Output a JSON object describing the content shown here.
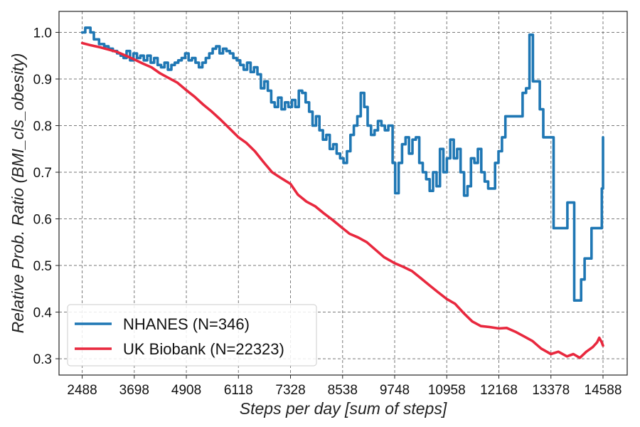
{
  "chart_data": {
    "type": "line",
    "xlabel": "Steps per day [sum of steps]",
    "ylabel": "Relative Prob. Ratio (BMI_cls_obesity)",
    "xlim": [
      1950,
      15150
    ],
    "ylim": [
      0.265,
      1.045
    ],
    "xticks": [
      2488,
      3698,
      4908,
      6118,
      7328,
      8538,
      9748,
      10958,
      12168,
      13378,
      14588
    ],
    "yticks": [
      0.3,
      0.4,
      0.5,
      0.6,
      0.7,
      0.8,
      0.9,
      1.0
    ],
    "ytick_labels": [
      "0.3",
      "0.4",
      "0.5",
      "0.6",
      "0.7",
      "0.8",
      "0.9",
      "1.0"
    ],
    "grid": true,
    "legend_position": "lower-left",
    "series": [
      {
        "name": "NHANES (N=346)",
        "color": "#1f77b4",
        "step": true,
        "points": [
          [
            2488,
            1.0
          ],
          [
            2560,
            1.01
          ],
          [
            2680,
            1.0
          ],
          [
            2760,
            0.985
          ],
          [
            2880,
            0.975
          ],
          [
            3000,
            0.97
          ],
          [
            3100,
            0.965
          ],
          [
            3200,
            0.96
          ],
          [
            3300,
            0.955
          ],
          [
            3380,
            0.95
          ],
          [
            3450,
            0.945
          ],
          [
            3520,
            0.96
          ],
          [
            3600,
            0.94
          ],
          [
            3680,
            0.955
          ],
          [
            3760,
            0.945
          ],
          [
            3840,
            0.95
          ],
          [
            3920,
            0.94
          ],
          [
            4000,
            0.95
          ],
          [
            4080,
            0.935
          ],
          [
            4160,
            0.945
          ],
          [
            4240,
            0.93
          ],
          [
            4320,
            0.925
          ],
          [
            4400,
            0.935
          ],
          [
            4480,
            0.92
          ],
          [
            4560,
            0.93
          ],
          [
            4640,
            0.935
          ],
          [
            4720,
            0.94
          ],
          [
            4800,
            0.945
          ],
          [
            4880,
            0.955
          ],
          [
            4960,
            0.94
          ],
          [
            5040,
            0.945
          ],
          [
            5120,
            0.935
          ],
          [
            5200,
            0.925
          ],
          [
            5280,
            0.935
          ],
          [
            5360,
            0.945
          ],
          [
            5440,
            0.955
          ],
          [
            5520,
            0.965
          ],
          [
            5600,
            0.97
          ],
          [
            5680,
            0.955
          ],
          [
            5760,
            0.965
          ],
          [
            5840,
            0.96
          ],
          [
            5920,
            0.955
          ],
          [
            6000,
            0.945
          ],
          [
            6080,
            0.94
          ],
          [
            6160,
            0.93
          ],
          [
            6240,
            0.92
          ],
          [
            6320,
            0.935
          ],
          [
            6400,
            0.915
          ],
          [
            6480,
            0.925
          ],
          [
            6560,
            0.91
          ],
          [
            6640,
            0.88
          ],
          [
            6720,
            0.895
          ],
          [
            6800,
            0.875
          ],
          [
            6880,
            0.85
          ],
          [
            6960,
            0.84
          ],
          [
            7040,
            0.86
          ],
          [
            7120,
            0.835
          ],
          [
            7200,
            0.85
          ],
          [
            7280,
            0.84
          ],
          [
            7360,
            0.855
          ],
          [
            7440,
            0.84
          ],
          [
            7520,
            0.875
          ],
          [
            7600,
            0.87
          ],
          [
            7680,
            0.85
          ],
          [
            7760,
            0.83
          ],
          [
            7840,
            0.8
          ],
          [
            7920,
            0.82
          ],
          [
            8000,
            0.79
          ],
          [
            8080,
            0.77
          ],
          [
            8160,
            0.78
          ],
          [
            8240,
            0.75
          ],
          [
            8320,
            0.76
          ],
          [
            8400,
            0.74
          ],
          [
            8480,
            0.73
          ],
          [
            8560,
            0.72
          ],
          [
            8640,
            0.745
          ],
          [
            8720,
            0.78
          ],
          [
            8800,
            0.8
          ],
          [
            8880,
            0.82
          ],
          [
            8960,
            0.87
          ],
          [
            9040,
            0.84
          ],
          [
            9120,
            0.8
          ],
          [
            9200,
            0.78
          ],
          [
            9280,
            0.79
          ],
          [
            9360,
            0.81
          ],
          [
            9440,
            0.8
          ],
          [
            9520,
            0.79
          ],
          [
            9600,
            0.8
          ],
          [
            9700,
            0.72
          ],
          [
            9760,
            0.655
          ],
          [
            9840,
            0.72
          ],
          [
            9920,
            0.76
          ],
          [
            10000,
            0.775
          ],
          [
            10080,
            0.74
          ],
          [
            10160,
            0.77
          ],
          [
            10240,
            0.775
          ],
          [
            10320,
            0.72
          ],
          [
            10400,
            0.7
          ],
          [
            10480,
            0.685
          ],
          [
            10560,
            0.66
          ],
          [
            10640,
            0.7
          ],
          [
            10720,
            0.67
          ],
          [
            10800,
            0.75
          ],
          [
            10880,
            0.7
          ],
          [
            10960,
            0.73
          ],
          [
            11040,
            0.77
          ],
          [
            11120,
            0.73
          ],
          [
            11200,
            0.75
          ],
          [
            11280,
            0.7
          ],
          [
            11360,
            0.65
          ],
          [
            11440,
            0.67
          ],
          [
            11520,
            0.73
          ],
          [
            11600,
            0.72
          ],
          [
            11680,
            0.75
          ],
          [
            11760,
            0.7
          ],
          [
            11840,
            0.68
          ],
          [
            11920,
            0.665
          ],
          [
            12000,
            0.665
          ],
          [
            12080,
            0.72
          ],
          [
            12160,
            0.745
          ],
          [
            12240,
            0.775
          ],
          [
            12320,
            0.82
          ],
          [
            12400,
            0.82
          ],
          [
            12480,
            0.82
          ],
          [
            12560,
            0.82
          ],
          [
            12640,
            0.82
          ],
          [
            12720,
            0.87
          ],
          [
            12800,
            0.88
          ],
          [
            12880,
            0.995
          ],
          [
            12960,
            0.895
          ],
          [
            13040,
            0.895
          ],
          [
            13120,
            0.835
          ],
          [
            13200,
            0.775
          ],
          [
            13280,
            0.775
          ],
          [
            13360,
            0.775
          ],
          [
            13440,
            0.58
          ],
          [
            13520,
            0.58
          ],
          [
            13600,
            0.58
          ],
          [
            13680,
            0.58
          ],
          [
            13760,
            0.635
          ],
          [
            13840,
            0.635
          ],
          [
            13920,
            0.425
          ],
          [
            14000,
            0.425
          ],
          [
            14080,
            0.47
          ],
          [
            14160,
            0.515
          ],
          [
            14240,
            0.515
          ],
          [
            14320,
            0.58
          ],
          [
            14400,
            0.58
          ],
          [
            14480,
            0.58
          ],
          [
            14560,
            0.665
          ],
          [
            14588,
            0.775
          ]
        ]
      },
      {
        "name": "UK Biobank (N=22323)",
        "color": "#e8283e",
        "step": false,
        "points": [
          [
            2488,
            0.977
          ],
          [
            2700,
            0.972
          ],
          [
            2900,
            0.968
          ],
          [
            3100,
            0.963
          ],
          [
            3300,
            0.958
          ],
          [
            3500,
            0.95
          ],
          [
            3698,
            0.942
          ],
          [
            3900,
            0.933
          ],
          [
            4100,
            0.925
          ],
          [
            4300,
            0.912
          ],
          [
            4500,
            0.902
          ],
          [
            4700,
            0.892
          ],
          [
            4908,
            0.876
          ],
          [
            5100,
            0.862
          ],
          [
            5300,
            0.845
          ],
          [
            5500,
            0.83
          ],
          [
            5700,
            0.813
          ],
          [
            5900,
            0.795
          ],
          [
            6118,
            0.775
          ],
          [
            6300,
            0.763
          ],
          [
            6500,
            0.745
          ],
          [
            6700,
            0.722
          ],
          [
            6900,
            0.7
          ],
          [
            7100,
            0.688
          ],
          [
            7328,
            0.675
          ],
          [
            7500,
            0.652
          ],
          [
            7700,
            0.637
          ],
          [
            7900,
            0.627
          ],
          [
            8100,
            0.612
          ],
          [
            8300,
            0.598
          ],
          [
            8538,
            0.58
          ],
          [
            8700,
            0.568
          ],
          [
            8900,
            0.56
          ],
          [
            9100,
            0.55
          ],
          [
            9300,
            0.534
          ],
          [
            9500,
            0.518
          ],
          [
            9748,
            0.505
          ],
          [
            9950,
            0.497
          ],
          [
            10150,
            0.488
          ],
          [
            10350,
            0.473
          ],
          [
            10550,
            0.458
          ],
          [
            10750,
            0.443
          ],
          [
            10958,
            0.428
          ],
          [
            11150,
            0.418
          ],
          [
            11350,
            0.398
          ],
          [
            11550,
            0.38
          ],
          [
            11750,
            0.37
          ],
          [
            11950,
            0.368
          ],
          [
            12168,
            0.365
          ],
          [
            12350,
            0.366
          ],
          [
            12550,
            0.358
          ],
          [
            12750,
            0.348
          ],
          [
            12950,
            0.338
          ],
          [
            13150,
            0.322
          ],
          [
            13378,
            0.31
          ],
          [
            13550,
            0.315
          ],
          [
            13750,
            0.305
          ],
          [
            13900,
            0.31
          ],
          [
            14050,
            0.302
          ],
          [
            14200,
            0.315
          ],
          [
            14350,
            0.325
          ],
          [
            14450,
            0.335
          ],
          [
            14500,
            0.345
          ],
          [
            14560,
            0.335
          ],
          [
            14588,
            0.328
          ]
        ]
      }
    ]
  }
}
